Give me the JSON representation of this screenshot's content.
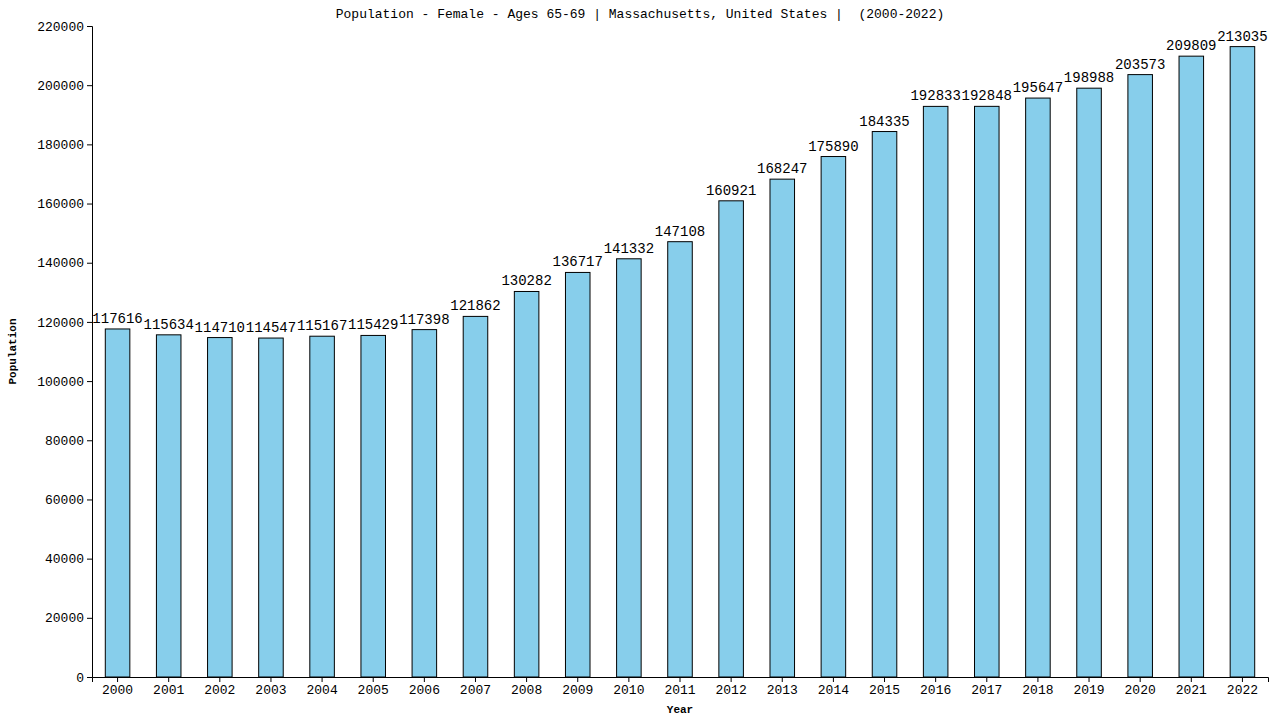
{
  "chart_data": {
    "type": "bar",
    "title": "Population - Female - Ages 65-69 | Massachusetts, United States |  (2000-2022)",
    "x_label": "Year",
    "y_label": "Population",
    "categories": [
      "2000",
      "2001",
      "2002",
      "2003",
      "2004",
      "2005",
      "2006",
      "2007",
      "2008",
      "2009",
      "2010",
      "2011",
      "2012",
      "2013",
      "2014",
      "2015",
      "2016",
      "2017",
      "2018",
      "2019",
      "2020",
      "2021",
      "2022"
    ],
    "values": [
      117616,
      115634,
      114710,
      114547,
      115167,
      115429,
      117398,
      121862,
      130282,
      136717,
      141332,
      147108,
      160921,
      168247,
      175890,
      184335,
      192833,
      192848,
      195647,
      198988,
      203573,
      209809,
      213035
    ],
    "color": "#87ceeb",
    "ylim": [
      0,
      220000
    ],
    "yticks": [
      0,
      20000,
      40000,
      60000,
      80000,
      100000,
      120000,
      140000,
      160000,
      180000,
      200000,
      220000
    ],
    "grid": false,
    "data_labels": true
  }
}
